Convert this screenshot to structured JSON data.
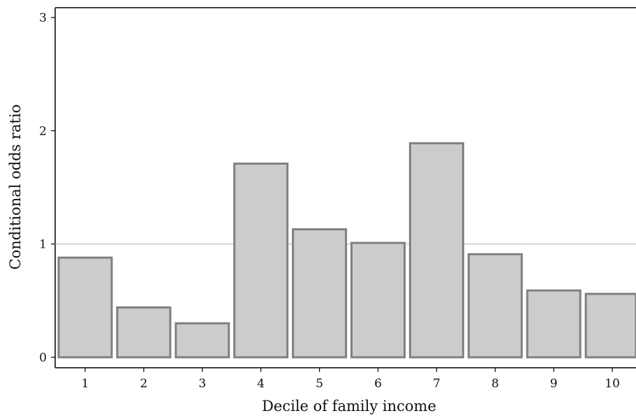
{
  "chart_data": {
    "type": "bar",
    "title": "",
    "xlabel": "Decile of family income",
    "ylabel": "Conditional odds ratio",
    "categories": [
      "1",
      "2",
      "3",
      "4",
      "5",
      "6",
      "7",
      "8",
      "9",
      "10"
    ],
    "values": [
      0.88,
      0.44,
      0.3,
      1.71,
      1.13,
      1.01,
      1.89,
      0.91,
      0.59,
      0.56
    ],
    "ylim": [
      0,
      3
    ],
    "yticks": [
      "0",
      "1",
      "2",
      "3"
    ],
    "reference_line": 1,
    "grid": false,
    "legend": "none",
    "colors": {
      "bar_fill": "#cccccc",
      "bar_stroke": "#808080",
      "reference_line": "#bbbbbb",
      "axis": "#000000"
    }
  }
}
